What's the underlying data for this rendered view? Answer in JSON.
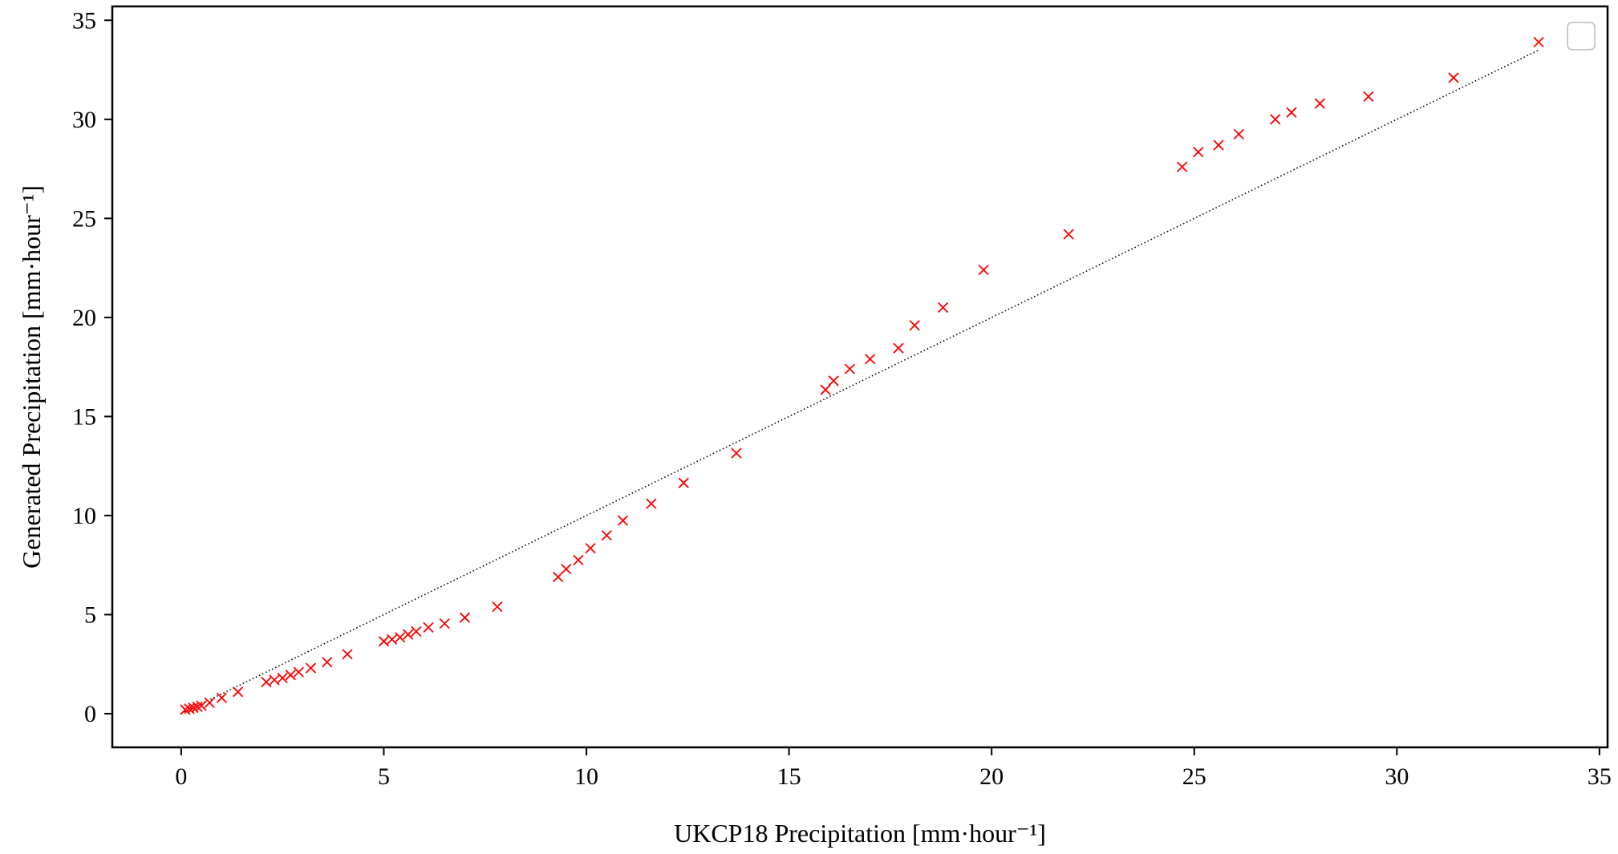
{
  "chart_data": {
    "type": "scatter",
    "xlabel": "UKCP18 Precipitation [mm·hour⁻¹]",
    "ylabel": "Generated Precipitation [mm·hour⁻¹]",
    "xlim": [
      -1.7,
      35.2
    ],
    "ylim": [
      -1.7,
      35.7
    ],
    "xticks": [
      0,
      5,
      10,
      15,
      20,
      25,
      30,
      35
    ],
    "yticks": [
      0,
      5,
      10,
      15,
      20,
      25,
      30,
      35
    ],
    "grid": false,
    "legend": "top-right, empty",
    "marker": "x",
    "marker_color": "#ff0000",
    "reference_line": {
      "style": "dotted",
      "color": "#000000",
      "x": [
        0,
        5,
        10,
        15,
        20,
        25,
        30,
        33.5
      ],
      "y": [
        0,
        5,
        10,
        15,
        20,
        25,
        30,
        33.5
      ]
    },
    "points": {
      "x": [
        0.1,
        0.2,
        0.3,
        0.4,
        0.5,
        0.7,
        1.0,
        1.4,
        2.1,
        2.3,
        2.5,
        2.7,
        2.9,
        3.2,
        3.6,
        4.1,
        5.0,
        5.2,
        5.4,
        5.6,
        5.8,
        6.1,
        6.5,
        7.0,
        7.8,
        9.3,
        9.5,
        9.8,
        10.1,
        10.5,
        10.9,
        11.6,
        12.4,
        13.7,
        15.9,
        16.1,
        16.5,
        17.0,
        17.7,
        18.1,
        18.8,
        19.8,
        21.9,
        24.7,
        25.1,
        25.6,
        26.1,
        27.0,
        27.4,
        28.1,
        29.3,
        31.4,
        33.5
      ],
      "y": [
        0.2,
        0.25,
        0.3,
        0.35,
        0.4,
        0.55,
        0.8,
        1.1,
        1.6,
        1.7,
        1.8,
        1.95,
        2.1,
        2.3,
        2.6,
        3.0,
        3.65,
        3.75,
        3.85,
        4.0,
        4.15,
        4.35,
        4.55,
        4.85,
        5.4,
        6.9,
        7.3,
        7.75,
        8.35,
        9.0,
        9.75,
        10.6,
        11.65,
        13.15,
        16.35,
        16.8,
        17.4,
        17.9,
        18.45,
        19.6,
        20.5,
        22.4,
        24.2,
        27.6,
        28.35,
        28.7,
        29.25,
        30.0,
        30.35,
        30.8,
        31.15,
        32.1,
        33.9
      ]
    }
  }
}
